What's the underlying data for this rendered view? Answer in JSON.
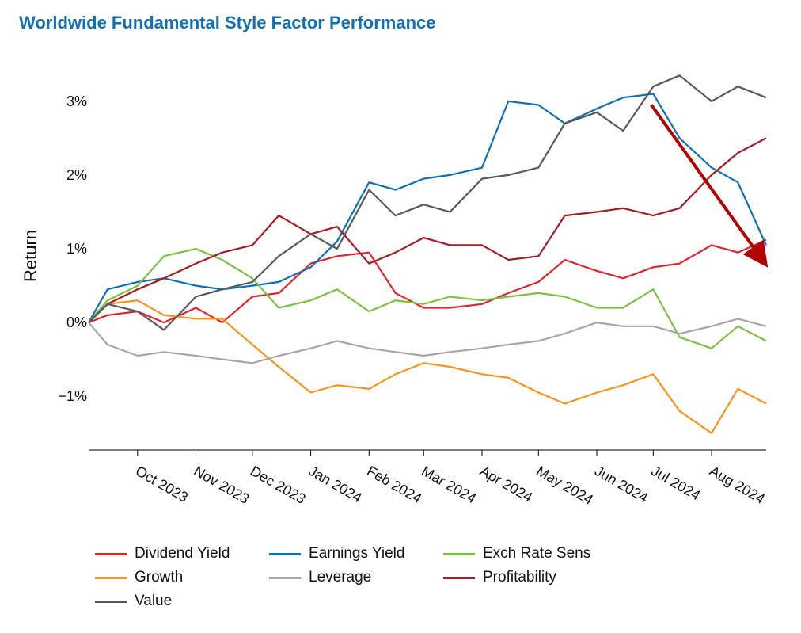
{
  "chart_data": {
    "type": "line",
    "title": "Worldwide Fundamental Style Factor Performance",
    "ylabel": "Return",
    "xlabel": "",
    "ylim": [
      -1.75,
      3.6
    ],
    "yticks": [
      -1,
      0,
      1,
      2,
      3
    ],
    "ytick_labels": [
      "−1%",
      "0%",
      "1%",
      "2%",
      "3%"
    ],
    "x_range": [
      "2023-09-05",
      "2024-08-30"
    ],
    "xticks": [
      "2023-10-01",
      "2023-11-01",
      "2023-12-01",
      "2024-01-01",
      "2024-02-01",
      "2024-03-01",
      "2024-04-01",
      "2024-05-01",
      "2024-06-01",
      "2024-07-01",
      "2024-08-01"
    ],
    "xtick_labels": [
      "Oct 2023",
      "Nov 2023",
      "Dec 2023",
      "Jan 2024",
      "Feb 2024",
      "Mar 2024",
      "Apr 2024",
      "May 2024",
      "Jun 2024",
      "Jul 2024",
      "Aug 2024"
    ],
    "grid": false,
    "legend_position": "bottom",
    "series": [
      {
        "name": "Dividend Yield",
        "color": "#e0262d",
        "x": [
          "2023-09-05",
          "2023-09-15",
          "2023-10-01",
          "2023-10-15",
          "2023-11-01",
          "2023-11-15",
          "2023-12-01",
          "2023-12-15",
          "2024-01-01",
          "2024-01-15",
          "2024-02-01",
          "2024-02-15",
          "2024-03-01",
          "2024-03-15",
          "2024-04-01",
          "2024-04-15",
          "2024-05-01",
          "2024-05-15",
          "2024-06-01",
          "2024-06-15",
          "2024-07-01",
          "2024-07-15",
          "2024-08-01",
          "2024-08-15",
          "2024-08-30"
        ],
        "values": [
          0.0,
          0.1,
          0.15,
          0.0,
          0.2,
          0.0,
          0.35,
          0.4,
          0.8,
          0.9,
          0.95,
          0.4,
          0.2,
          0.2,
          0.25,
          0.4,
          0.55,
          0.85,
          0.7,
          0.6,
          0.75,
          0.8,
          1.05,
          0.95,
          1.12
        ]
      },
      {
        "name": "Earnings Yield",
        "color": "#0f70b7",
        "x": [
          "2023-09-05",
          "2023-09-15",
          "2023-10-01",
          "2023-10-15",
          "2023-11-01",
          "2023-11-15",
          "2023-12-01",
          "2023-12-15",
          "2024-01-01",
          "2024-01-15",
          "2024-02-01",
          "2024-02-15",
          "2024-03-01",
          "2024-03-15",
          "2024-04-01",
          "2024-04-15",
          "2024-05-01",
          "2024-05-15",
          "2024-06-01",
          "2024-06-15",
          "2024-07-01",
          "2024-07-15",
          "2024-08-01",
          "2024-08-15",
          "2024-08-30"
        ],
        "values": [
          0.0,
          0.45,
          0.55,
          0.6,
          0.5,
          0.45,
          0.5,
          0.55,
          0.75,
          1.1,
          1.9,
          1.8,
          1.95,
          2.0,
          2.1,
          3.0,
          2.95,
          2.7,
          2.9,
          3.05,
          3.1,
          2.5,
          2.1,
          1.9,
          1.05
        ]
      },
      {
        "name": "Exch Rate Sens",
        "color": "#7cc142",
        "x": [
          "2023-09-05",
          "2023-09-15",
          "2023-10-01",
          "2023-10-15",
          "2023-11-01",
          "2023-11-15",
          "2023-12-01",
          "2023-12-15",
          "2024-01-01",
          "2024-01-15",
          "2024-02-01",
          "2024-02-15",
          "2024-03-01",
          "2024-03-15",
          "2024-04-01",
          "2024-04-15",
          "2024-05-01",
          "2024-05-15",
          "2024-06-01",
          "2024-06-15",
          "2024-07-01",
          "2024-07-15",
          "2024-08-01",
          "2024-08-15",
          "2024-08-30"
        ],
        "values": [
          0.0,
          0.3,
          0.5,
          0.9,
          1.0,
          0.85,
          0.6,
          0.2,
          0.3,
          0.45,
          0.15,
          0.3,
          0.25,
          0.35,
          0.3,
          0.35,
          0.4,
          0.35,
          0.2,
          0.2,
          0.45,
          -0.2,
          -0.35,
          -0.05,
          -0.25
        ]
      },
      {
        "name": "Growth",
        "color": "#f7941d",
        "x": [
          "2023-09-05",
          "2023-09-15",
          "2023-10-01",
          "2023-10-15",
          "2023-11-01",
          "2023-11-15",
          "2023-12-01",
          "2023-12-15",
          "2024-01-01",
          "2024-01-15",
          "2024-02-01",
          "2024-02-15",
          "2024-03-01",
          "2024-03-15",
          "2024-04-01",
          "2024-04-15",
          "2024-05-01",
          "2024-05-15",
          "2024-06-01",
          "2024-06-15",
          "2024-07-01",
          "2024-07-15",
          "2024-08-01",
          "2024-08-15",
          "2024-08-30"
        ],
        "values": [
          0.0,
          0.25,
          0.3,
          0.1,
          0.05,
          0.05,
          -0.3,
          -0.6,
          -0.95,
          -0.85,
          -0.9,
          -0.7,
          -0.55,
          -0.6,
          -0.7,
          -0.75,
          -0.95,
          -1.1,
          -0.95,
          -0.85,
          -0.7,
          -1.2,
          -1.5,
          -0.9,
          -1.1
        ]
      },
      {
        "name": "Leverage",
        "color": "#a6a6a6",
        "x": [
          "2023-09-05",
          "2023-09-15",
          "2023-10-01",
          "2023-10-15",
          "2023-11-01",
          "2023-11-15",
          "2023-12-01",
          "2023-12-15",
          "2024-01-01",
          "2024-01-15",
          "2024-02-01",
          "2024-02-15",
          "2024-03-01",
          "2024-03-15",
          "2024-04-01",
          "2024-04-15",
          "2024-05-01",
          "2024-05-15",
          "2024-06-01",
          "2024-06-15",
          "2024-07-01",
          "2024-07-15",
          "2024-08-01",
          "2024-08-15",
          "2024-08-30"
        ],
        "values": [
          0.0,
          -0.3,
          -0.45,
          -0.4,
          -0.45,
          -0.5,
          -0.55,
          -0.45,
          -0.35,
          -0.25,
          -0.35,
          -0.4,
          -0.45,
          -0.4,
          -0.35,
          -0.3,
          -0.25,
          -0.15,
          0.0,
          -0.05,
          -0.05,
          -0.15,
          -0.05,
          0.05,
          -0.05
        ]
      },
      {
        "name": "Profitability",
        "color": "#a31d24",
        "x": [
          "2023-09-05",
          "2023-09-15",
          "2023-10-01",
          "2023-10-15",
          "2023-11-01",
          "2023-11-15",
          "2023-12-01",
          "2023-12-15",
          "2024-01-01",
          "2024-01-15",
          "2024-02-01",
          "2024-02-15",
          "2024-03-01",
          "2024-03-15",
          "2024-04-01",
          "2024-04-15",
          "2024-05-01",
          "2024-05-15",
          "2024-06-01",
          "2024-06-15",
          "2024-07-01",
          "2024-07-15",
          "2024-08-01",
          "2024-08-15",
          "2024-08-30"
        ],
        "values": [
          0.0,
          0.25,
          0.45,
          0.6,
          0.8,
          0.95,
          1.05,
          1.45,
          1.2,
          1.3,
          0.8,
          0.95,
          1.15,
          1.05,
          1.05,
          0.85,
          0.9,
          1.45,
          1.5,
          1.55,
          1.45,
          1.55,
          2.0,
          2.3,
          2.5
        ]
      },
      {
        "name": "Value",
        "color": "#595959",
        "x": [
          "2023-09-05",
          "2023-09-15",
          "2023-10-01",
          "2023-10-15",
          "2023-11-01",
          "2023-11-15",
          "2023-12-01",
          "2023-12-15",
          "2024-01-01",
          "2024-01-15",
          "2024-02-01",
          "2024-02-15",
          "2024-03-01",
          "2024-03-15",
          "2024-04-01",
          "2024-04-15",
          "2024-05-01",
          "2024-05-15",
          "2024-06-01",
          "2024-06-15",
          "2024-07-01",
          "2024-07-15",
          "2024-08-01",
          "2024-08-15",
          "2024-08-30"
        ],
        "values": [
          0.0,
          0.25,
          0.15,
          -0.1,
          0.35,
          0.45,
          0.55,
          0.9,
          1.2,
          1.0,
          1.8,
          1.45,
          1.6,
          1.5,
          1.95,
          2.0,
          2.1,
          2.7,
          2.85,
          2.6,
          3.2,
          3.35,
          3.0,
          3.2,
          3.05
        ]
      }
    ],
    "annotations": [
      {
        "type": "arrow",
        "color": "#b30000",
        "from": {
          "x": "2024-06-30",
          "y": 2.95
        },
        "to": {
          "x": "2024-08-28",
          "y": 0.85
        }
      }
    ]
  }
}
